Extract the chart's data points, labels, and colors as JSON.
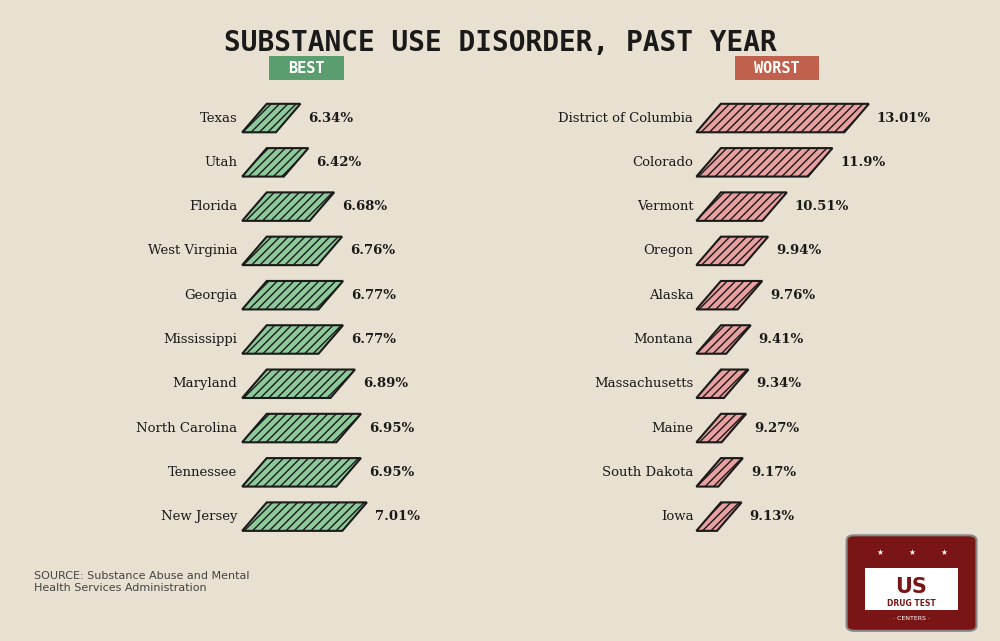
{
  "title": "SUBSTANCE USE DISORDER, PAST YEAR",
  "best_label": "BEST",
  "worst_label": "WORST",
  "best_color": "#5a9e6f",
  "worst_color": "#c0614d",
  "best_states": [
    "Texas",
    "Utah",
    "Florida",
    "West Virginia",
    "Georgia",
    "Mississippi",
    "Maryland",
    "North Carolina",
    "Tennessee",
    "New Jersey"
  ],
  "best_values": [
    6.34,
    6.42,
    6.68,
    6.76,
    6.77,
    6.77,
    6.89,
    6.95,
    6.95,
    7.01
  ],
  "best_labels": [
    "6.34%",
    "6.42%",
    "6.68%",
    "6.76%",
    "6.77%",
    "6.77%",
    "6.89%",
    "6.95%",
    "6.95%",
    "7.01%"
  ],
  "worst_states": [
    "District of Columbia",
    "Colorado",
    "Vermont",
    "Oregon",
    "Alaska",
    "Montana",
    "Massachusetts",
    "Maine",
    "South Dakota",
    "Iowa"
  ],
  "worst_values": [
    13.01,
    11.9,
    10.51,
    9.94,
    9.76,
    9.41,
    9.34,
    9.27,
    9.17,
    9.13
  ],
  "worst_labels": [
    "13.01%",
    "11.9%",
    "10.51%",
    "9.94%",
    "9.76%",
    "9.41%",
    "9.34%",
    "9.27%",
    "9.17%",
    "9.13%"
  ],
  "bg_color": "#e8e0d0",
  "bar_fill_green": "#8dc99a",
  "bar_fill_red": "#e8a0a0",
  "bar_edge": "#1a1a1a",
  "text_color": "#1a1a1a",
  "source_text": "SOURCE: Substance Abuse and Mental\nHealth Services Administration",
  "best_min": 6.0,
  "best_max": 7.5,
  "worst_min": 8.5,
  "worst_max": 14.0
}
